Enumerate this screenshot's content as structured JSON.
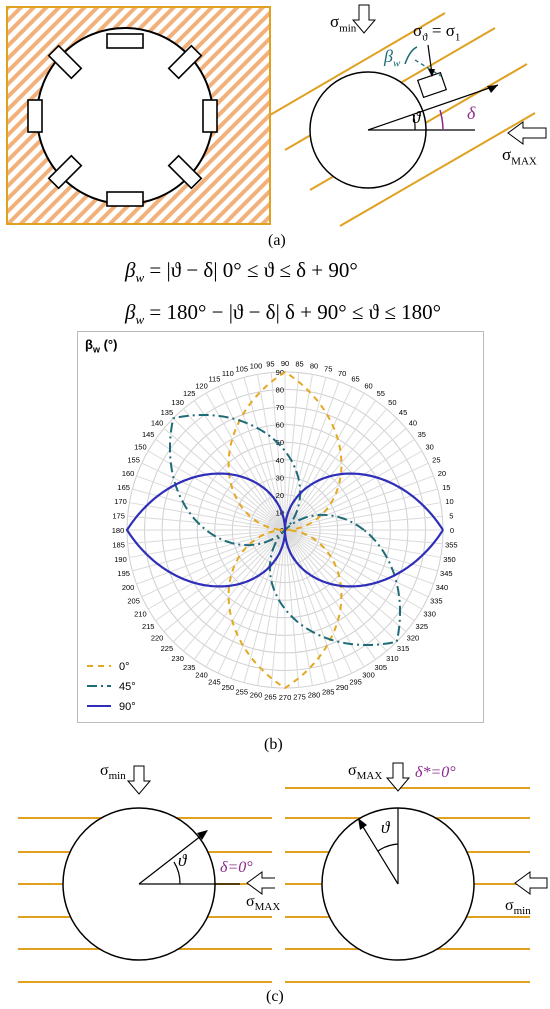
{
  "panel_a": {
    "caption": "(a)",
    "sigma_min": "σ",
    "sigma_min_sub": "min",
    "sigma_theta": "σ",
    "sigma_theta_sub": "ϑ",
    "sigma_1": "= σ",
    "sigma_1_sub": "1",
    "beta_w": "β",
    "beta_w_sub": "w",
    "theta": "ϑ",
    "delta": "δ",
    "sigma_max": "σ",
    "sigma_max_sub": "MAX"
  },
  "equations": {
    "eq1_lhs": "β",
    "eq1_lhs_sub": "w",
    "eq1_rhs": "= |ϑ − δ|  0° ≤ ϑ ≤ δ + 90°",
    "eq2_lhs": "β",
    "eq2_lhs_sub": "w",
    "eq2_rhs": "= 180° − |ϑ − δ|  δ + 90° ≤ ϑ ≤ 180°"
  },
  "panel_b": {
    "caption": "(b)",
    "y_title": "β",
    "y_title_sub": "w",
    "y_title_unit": " (°)"
  },
  "chart_data": {
    "type": "polar-line",
    "angle_tick_labels": [
      "0",
      "5",
      "10",
      "15",
      "20",
      "25",
      "30",
      "35",
      "40",
      "45",
      "50",
      "55",
      "60",
      "65",
      "70",
      "75",
      "80",
      "85",
      "90",
      "95",
      "100",
      "105",
      "110",
      "115",
      "120",
      "125",
      "130",
      "135",
      "140",
      "145",
      "150",
      "155",
      "160",
      "165",
      "170",
      "175",
      "180",
      "185",
      "190",
      "195",
      "200",
      "205",
      "210",
      "215",
      "220",
      "225",
      "230",
      "235",
      "240",
      "245",
      "250",
      "255",
      "260",
      "265",
      "270",
      "275",
      "280",
      "285",
      "290",
      "295",
      "300",
      "305",
      "310",
      "315",
      "320",
      "325",
      "330",
      "335",
      "340",
      "345",
      "350",
      "355"
    ],
    "radial_tick_labels": [
      "0",
      "10",
      "20",
      "30",
      "40",
      "50",
      "60",
      "70",
      "80",
      "90"
    ],
    "radial_range": [
      0,
      90
    ],
    "grid": true,
    "legend_position": "bottom-left",
    "series": [
      {
        "name": "0°",
        "delta": 0,
        "color": "#E5A823",
        "dash": "6,5"
      },
      {
        "name": "45°",
        "delta": 45,
        "color": "#1F6B78",
        "dash": "10,4,2,4"
      },
      {
        "name": "90°",
        "delta": 90,
        "color": "#2E2EB8",
        "dash": ""
      }
    ]
  },
  "panel_c": {
    "caption": "(c)",
    "left_sigma_min": "σ",
    "left_sigma_min_sub": "min",
    "left_theta": "ϑ",
    "left_delta": "δ=0°",
    "left_sigma_max": "σ",
    "left_sigma_max_sub": "MAX",
    "right_sigma_max": "σ",
    "right_sigma_max_sub": "MAX",
    "right_delta_star": "δ*=0°",
    "right_theta": "ϑ",
    "right_sigma_min": "σ",
    "right_sigma_min_sub": "min"
  }
}
